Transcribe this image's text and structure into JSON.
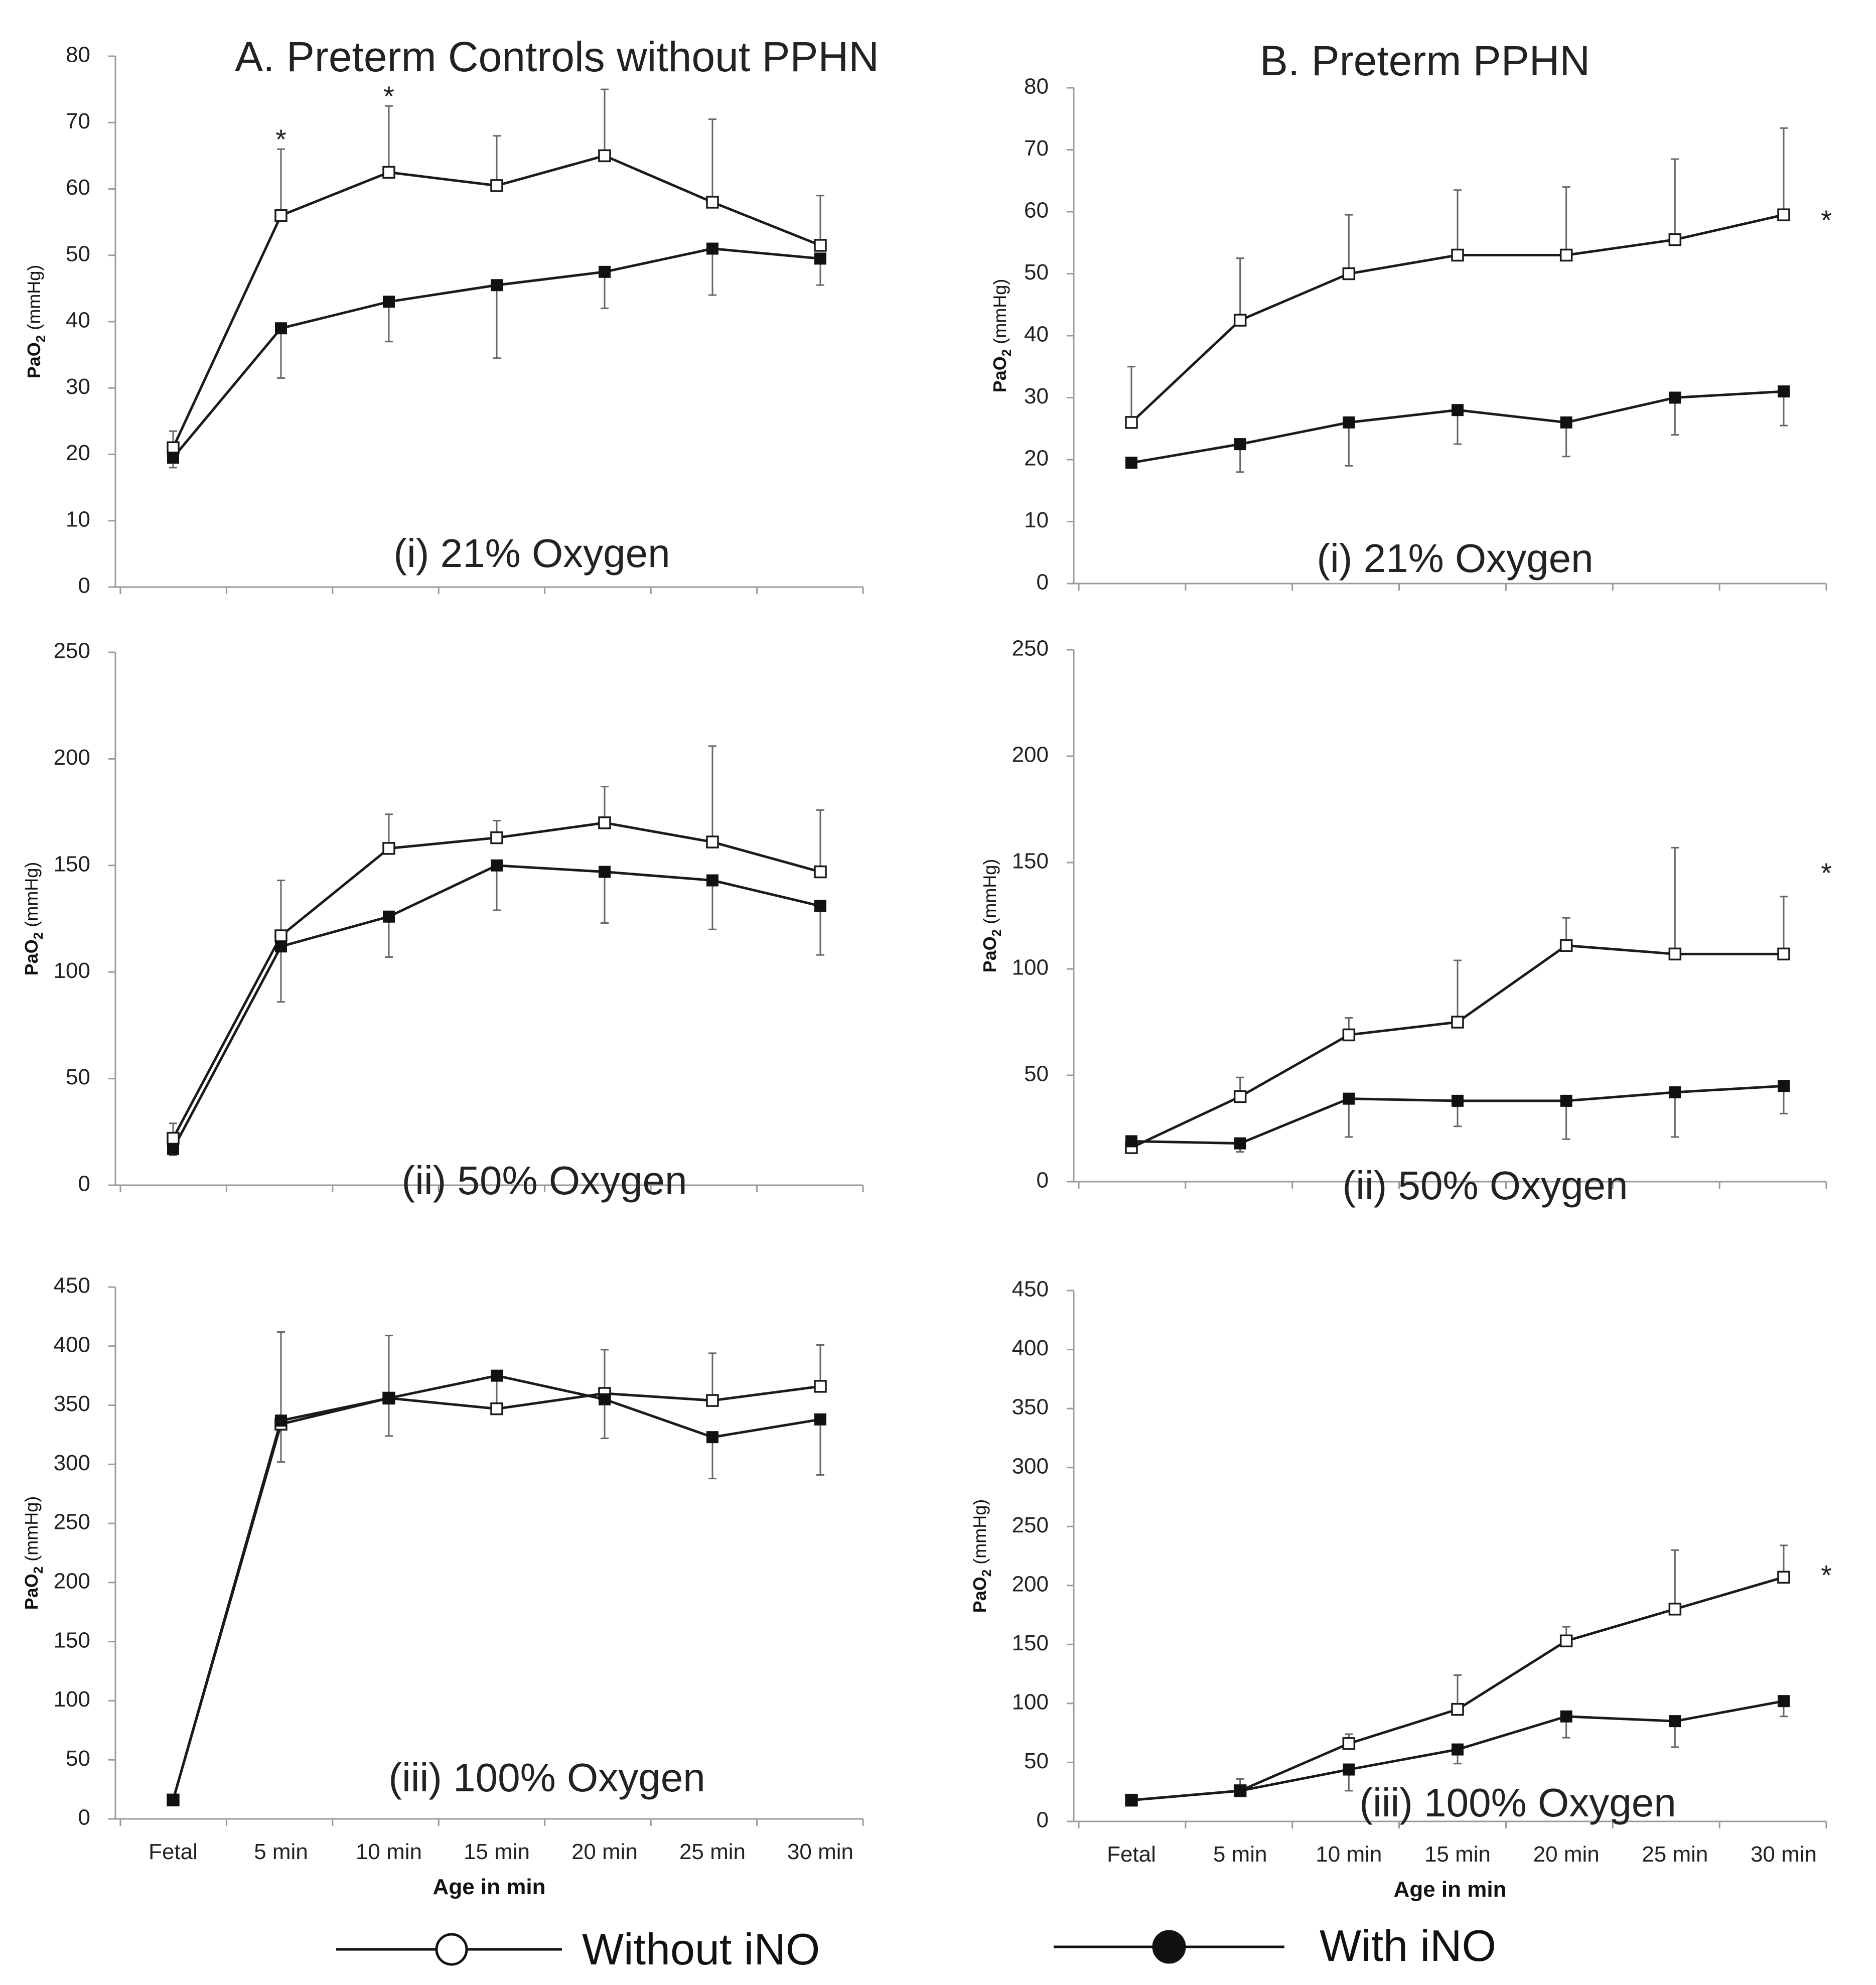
{
  "figure": {
    "x_ticks": [
      "Fetal",
      "5 min",
      "10 min",
      "15 min",
      "20 min",
      "25 min",
      "30 min"
    ],
    "xlabel": "Age in min",
    "ylabel_main": "PaO",
    "ylabel_sub": "2",
    "ylabel_unit": "(mmHg)",
    "legend": {
      "without": "Without iNO",
      "with": "With iNO"
    },
    "significance_mark": "*"
  },
  "chart_data": [
    {
      "id": "A-i",
      "type": "line",
      "title": "A. Preterm Controls without PPHN",
      "annotation": "(i) 21% Oxygen",
      "ylim": [
        0,
        80
      ],
      "ystep": 10,
      "categories": [
        "Fetal",
        "5 min",
        "10 min",
        "15 min",
        "20 min",
        "25 min",
        "30 min"
      ],
      "series": [
        {
          "name": "Without iNO",
          "marker": "open",
          "values": [
            21,
            56,
            62.5,
            60.5,
            65,
            58,
            51.5
          ],
          "err": [
            2.5,
            10,
            10,
            7.5,
            10,
            12.5,
            7.5
          ]
        },
        {
          "name": "With iNO",
          "marker": "filled",
          "values": [
            19.5,
            39,
            43,
            45.5,
            47.5,
            51,
            49.5
          ],
          "err": [
            1.5,
            7.5,
            6,
            11,
            5.5,
            7,
            4
          ]
        }
      ],
      "stars": [
        1,
        2
      ],
      "show_xticks": false
    },
    {
      "id": "B-i",
      "type": "line",
      "title": "B. Preterm PPHN",
      "annotation": "(i) 21% Oxygen",
      "ylim": [
        0,
        80
      ],
      "ystep": 10,
      "categories": [
        "Fetal",
        "5 min",
        "10 min",
        "15 min",
        "20 min",
        "25 min",
        "30 min"
      ],
      "series": [
        {
          "name": "Without iNO",
          "marker": "open",
          "values": [
            26,
            42.5,
            50,
            53,
            53,
            55.5,
            59.5
          ],
          "err": [
            9,
            10,
            9.5,
            10.5,
            11,
            13,
            14
          ]
        },
        {
          "name": "With iNO",
          "marker": "filled",
          "values": [
            19.5,
            22.5,
            26,
            28,
            26,
            30,
            31
          ],
          "err": [
            0,
            4.5,
            7,
            5.5,
            5.5,
            6,
            5.5
          ]
        }
      ],
      "stars": [
        6
      ],
      "show_xticks": false
    },
    {
      "id": "A-ii",
      "type": "line",
      "title": "",
      "annotation": "(ii) 50% Oxygen",
      "ylim": [
        0,
        250
      ],
      "ystep": 50,
      "categories": [
        "Fetal",
        "5 min",
        "10 min",
        "15 min",
        "20 min",
        "25 min",
        "30 min"
      ],
      "series": [
        {
          "name": "Without iNO",
          "marker": "open",
          "values": [
            22,
            117,
            158,
            163,
            170,
            161,
            147
          ],
          "err": [
            7,
            26,
            16,
            8,
            17,
            45,
            29
          ]
        },
        {
          "name": "With iNO",
          "marker": "filled",
          "values": [
            17,
            112,
            126,
            150,
            147,
            143,
            131
          ],
          "err": [
            3,
            26,
            19,
            21,
            24,
            23,
            23
          ]
        }
      ],
      "stars": [],
      "show_xticks": false
    },
    {
      "id": "B-ii",
      "type": "line",
      "title": "",
      "annotation": "(ii) 50% Oxygen",
      "ylim": [
        0,
        250
      ],
      "ystep": 50,
      "categories": [
        "Fetal",
        "5 min",
        "10 min",
        "15 min",
        "20 min",
        "25 min",
        "30 min"
      ],
      "series": [
        {
          "name": "Without iNO",
          "marker": "open",
          "values": [
            16,
            40,
            69,
            75,
            111,
            107,
            107
          ],
          "err": [
            0,
            9,
            8,
            29,
            13,
            50,
            27
          ]
        },
        {
          "name": "With iNO",
          "marker": "filled",
          "values": [
            19,
            18,
            39,
            38,
            38,
            42,
            45
          ],
          "err": [
            0,
            4,
            18,
            12,
            18,
            21,
            13
          ]
        }
      ],
      "stars": [
        6
      ],
      "show_xticks": false
    },
    {
      "id": "A-iii",
      "type": "line",
      "title": "",
      "annotation": "(iii) 100% Oxygen",
      "ylim": [
        0,
        450
      ],
      "ystep": 50,
      "categories": [
        "Fetal",
        "5 min",
        "10 min",
        "15 min",
        "20 min",
        "25 min",
        "30 min"
      ],
      "series": [
        {
          "name": "Without iNO",
          "marker": "open",
          "values": [
            16,
            334,
            356,
            347,
            360,
            354,
            366
          ],
          "err": [
            0,
            78,
            53,
            0,
            37,
            40,
            35
          ]
        },
        {
          "name": "With iNO",
          "marker": "filled",
          "values": [
            16,
            337,
            356,
            375,
            355,
            323,
            338
          ],
          "err": [
            0,
            35,
            32,
            24,
            33,
            35,
            47
          ]
        }
      ],
      "stars": [],
      "show_xticks": true
    },
    {
      "id": "B-iii",
      "type": "line",
      "title": "",
      "annotation": "(iii) 100% Oxygen",
      "ylim": [
        0,
        450
      ],
      "ystep": 50,
      "categories": [
        "Fetal",
        "5 min",
        "10 min",
        "15 min",
        "20 min",
        "25 min",
        "30 min"
      ],
      "series": [
        {
          "name": "Without iNO",
          "marker": "open",
          "values": [
            18,
            26,
            66,
            95,
            153,
            180,
            207
          ],
          "err": [
            0,
            10,
            8,
            29,
            12,
            50,
            27
          ]
        },
        {
          "name": "With iNO",
          "marker": "filled",
          "values": [
            18,
            26,
            44,
            61,
            89,
            85,
            102
          ],
          "err": [
            0,
            4,
            18,
            12,
            18,
            22,
            13
          ]
        }
      ],
      "stars": [
        6
      ],
      "show_xticks": true
    }
  ]
}
